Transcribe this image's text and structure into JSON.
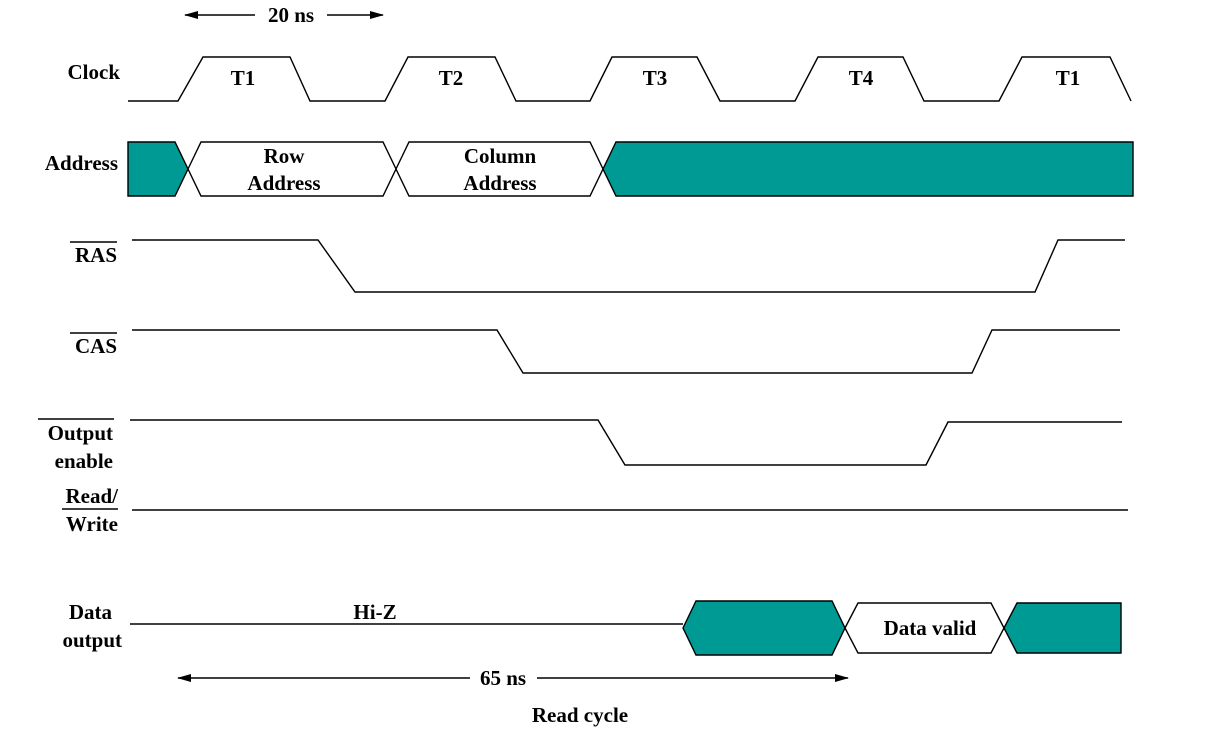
{
  "signals": {
    "clock": "Clock",
    "address": "Address",
    "ras": "RAS",
    "cas": "CAS",
    "oe_line1": "Output",
    "oe_line2": "enable",
    "rw_line1": "Read/",
    "rw_line2": "Write",
    "data_line1": "Data",
    "data_line2": "output"
  },
  "clock_phases": [
    "T1",
    "T2",
    "T3",
    "T4",
    "T1"
  ],
  "address_segments": {
    "row_line1": "Row",
    "row_line2": "Address",
    "col_line1": "Column",
    "col_line2": "Address"
  },
  "data_segments": {
    "hiz": "Hi-Z",
    "valid": "Data valid"
  },
  "timing": {
    "period": "20 ns",
    "access": "65 ns",
    "cycle_label": "Read cycle"
  },
  "colors": {
    "fill": "#009a94"
  }
}
